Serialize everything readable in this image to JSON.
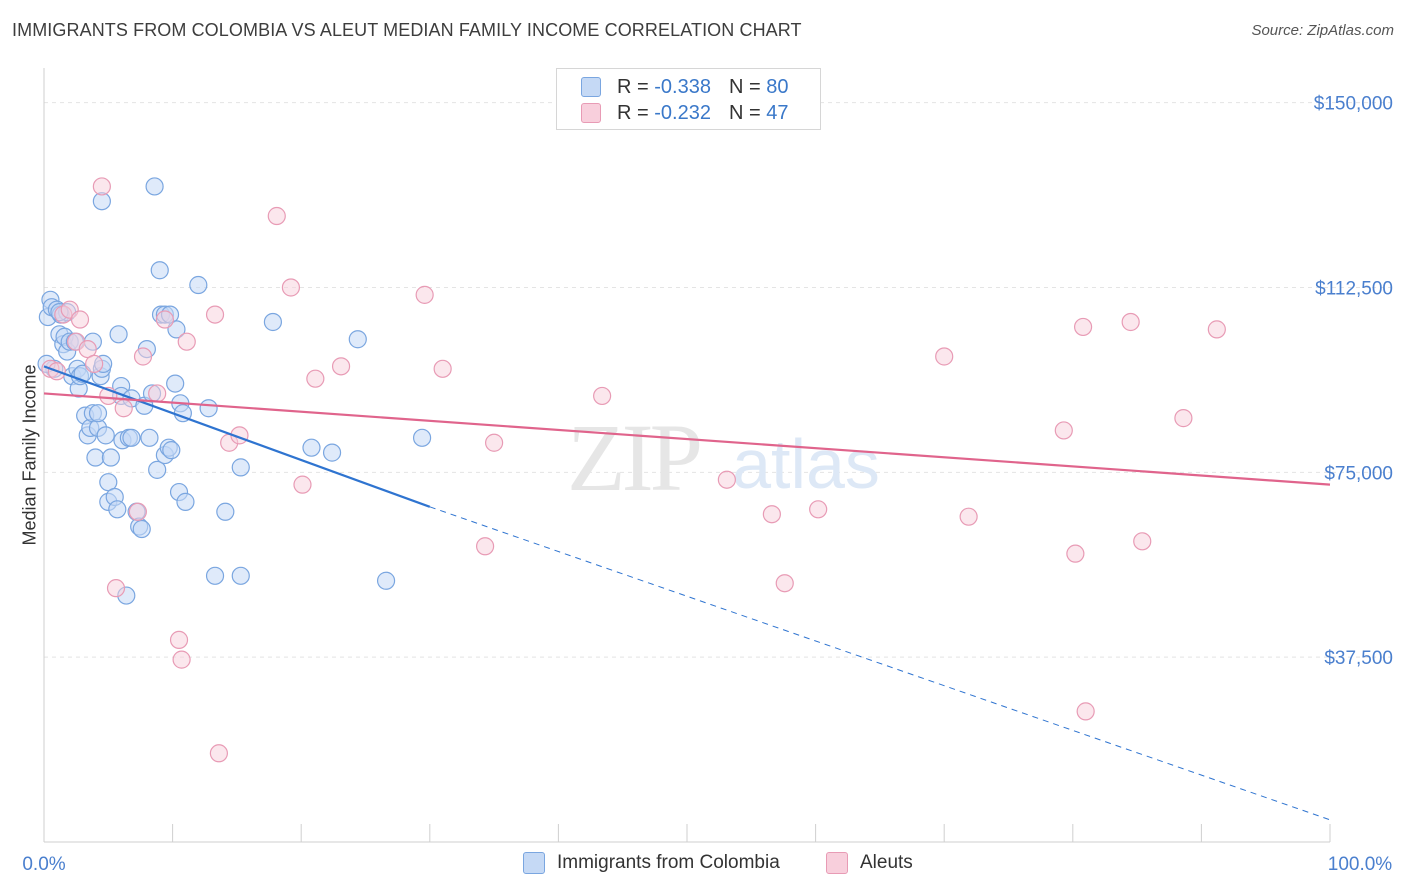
{
  "title": "IMMIGRANTS FROM COLOMBIA VS ALEUT MEDIAN FAMILY INCOME CORRELATION CHART",
  "source": "Source: ZipAtlas.com",
  "watermark": {
    "zip": "ZIP",
    "atlas": "atlas"
  },
  "colors": {
    "blue_fill": "#c5d9f5",
    "blue_stroke": "#7aa6e0",
    "blue_line": "#2f74d0",
    "pink_fill": "#f8cfdc",
    "pink_stroke": "#e89bb5",
    "pink_line": "#e0648c",
    "tick_text": "#4a7fce",
    "grid": "#e4e4e4"
  },
  "legend": {
    "row1": {
      "r_label": "R =",
      "r_value": "-0.338",
      "n_label": "N =",
      "n_value": "80"
    },
    "row2": {
      "r_label": "R =",
      "r_value": "-0.232",
      "n_label": "N =",
      "n_value": "47"
    }
  },
  "bottom_legend": {
    "series1": "Immigrants from Colombia",
    "series2": "Aleuts"
  },
  "chart_data": {
    "type": "scatter",
    "title": "IMMIGRANTS FROM COLOMBIA VS ALEUT MEDIAN FAMILY INCOME CORRELATION CHART",
    "xlabel": "",
    "ylabel": "Median Family Income",
    "xlim": [
      0,
      100
    ],
    "ylim": [
      0,
      155000
    ],
    "x_tick_labels": [
      "0.0%",
      "100.0%"
    ],
    "y_ticks": [
      37500,
      75000,
      112500,
      150000
    ],
    "y_tick_labels": [
      "$37,500",
      "$75,000",
      "$112,500",
      "$150,000"
    ],
    "series": [
      {
        "name": "Immigrants from Colombia",
        "R": -0.338,
        "N": 80,
        "trend": {
          "x0": 0,
          "y0": 96500,
          "x1": 30,
          "y1": 68000,
          "dashed_to_x": 100,
          "dashed_to_y": 4500
        },
        "points": [
          [
            0.3,
            106500
          ],
          [
            0.5,
            110000
          ],
          [
            0.6,
            108500
          ],
          [
            0.8,
            96000
          ],
          [
            1.0,
            108000
          ],
          [
            1.2,
            103000
          ],
          [
            1.3,
            107000
          ],
          [
            1.5,
            101000
          ],
          [
            1.6,
            102500
          ],
          [
            1.8,
            107500
          ],
          [
            1.8,
            99500
          ],
          [
            2.0,
            101500
          ],
          [
            2.2,
            94500
          ],
          [
            2.4,
            101500
          ],
          [
            2.6,
            96000
          ],
          [
            2.7,
            92000
          ],
          [
            2.8,
            94500
          ],
          [
            3.0,
            95000
          ],
          [
            3.2,
            86500
          ],
          [
            3.4,
            82500
          ],
          [
            3.6,
            84000
          ],
          [
            3.8,
            87000
          ],
          [
            4.0,
            78000
          ],
          [
            4.2,
            84000
          ],
          [
            4.2,
            87000
          ],
          [
            4.4,
            94500
          ],
          [
            4.5,
            96000
          ],
          [
            4.6,
            97000
          ],
          [
            4.8,
            82500
          ],
          [
            5.0,
            69000
          ],
          [
            5.0,
            73000
          ],
          [
            5.2,
            78000
          ],
          [
            5.5,
            70000
          ],
          [
            5.7,
            67500
          ],
          [
            5.8,
            103000
          ],
          [
            6.0,
            92500
          ],
          [
            6.0,
            90500
          ],
          [
            6.1,
            81500
          ],
          [
            6.4,
            50000
          ],
          [
            6.6,
            82000
          ],
          [
            6.8,
            82000
          ],
          [
            6.8,
            90000
          ],
          [
            7.2,
            67000
          ],
          [
            7.4,
            64000
          ],
          [
            7.6,
            63500
          ],
          [
            7.8,
            88500
          ],
          [
            8.0,
            100000
          ],
          [
            8.2,
            82000
          ],
          [
            8.4,
            91000
          ],
          [
            8.6,
            133000
          ],
          [
            8.8,
            75500
          ],
          [
            9.0,
            116000
          ],
          [
            9.1,
            107000
          ],
          [
            9.4,
            107000
          ],
          [
            9.4,
            78500
          ],
          [
            9.7,
            80000
          ],
          [
            9.8,
            107000
          ],
          [
            9.9,
            79500
          ],
          [
            10.2,
            93000
          ],
          [
            10.3,
            104000
          ],
          [
            10.5,
            71000
          ],
          [
            10.6,
            89000
          ],
          [
            10.8,
            87000
          ],
          [
            11.0,
            69000
          ],
          [
            12.0,
            113000
          ],
          [
            12.8,
            88000
          ],
          [
            14.1,
            67000
          ],
          [
            13.3,
            54000
          ],
          [
            15.3,
            76000
          ],
          [
            15.3,
            54000
          ],
          [
            17.8,
            105500
          ],
          [
            20.8,
            80000
          ],
          [
            22.4,
            79000
          ],
          [
            24.4,
            102000
          ],
          [
            26.6,
            53000
          ],
          [
            29.4,
            82000
          ],
          [
            4.5,
            130000
          ],
          [
            0.2,
            97000
          ],
          [
            1.2,
            107500
          ],
          [
            3.8,
            101500
          ]
        ]
      },
      {
        "name": "Aleuts",
        "R": -0.232,
        "N": 47,
        "trend": {
          "x0": 0,
          "y0": 91000,
          "x1": 100,
          "y1": 72500
        },
        "points": [
          [
            0.5,
            96000
          ],
          [
            1.0,
            95500
          ],
          [
            1.5,
            107000
          ],
          [
            2.0,
            108000
          ],
          [
            2.5,
            101500
          ],
          [
            2.8,
            106000
          ],
          [
            3.4,
            100000
          ],
          [
            3.9,
            97000
          ],
          [
            4.5,
            133000
          ],
          [
            5.0,
            90500
          ],
          [
            5.6,
            51500
          ],
          [
            6.2,
            88000
          ],
          [
            7.3,
            67000
          ],
          [
            7.7,
            98500
          ],
          [
            8.8,
            91000
          ],
          [
            9.4,
            106000
          ],
          [
            10.5,
            41000
          ],
          [
            10.7,
            37000
          ],
          [
            11.1,
            101500
          ],
          [
            13.3,
            107000
          ],
          [
            13.6,
            18000
          ],
          [
            14.4,
            81000
          ],
          [
            15.2,
            82500
          ],
          [
            18.1,
            127000
          ],
          [
            19.2,
            112500
          ],
          [
            20.1,
            72500
          ],
          [
            21.1,
            94000
          ],
          [
            23.1,
            96500
          ],
          [
            29.6,
            111000
          ],
          [
            31.0,
            96000
          ],
          [
            34.3,
            60000
          ],
          [
            35.0,
            81000
          ],
          [
            43.4,
            90500
          ],
          [
            53.1,
            73500
          ],
          [
            56.6,
            66500
          ],
          [
            57.6,
            52500
          ],
          [
            60.2,
            67500
          ],
          [
            70.0,
            98500
          ],
          [
            71.9,
            66000
          ],
          [
            79.3,
            83500
          ],
          [
            80.2,
            58500
          ],
          [
            80.8,
            104500
          ],
          [
            81.0,
            26500
          ],
          [
            84.5,
            105500
          ],
          [
            85.4,
            61000
          ],
          [
            88.6,
            86000
          ],
          [
            91.2,
            104000
          ]
        ]
      }
    ]
  }
}
